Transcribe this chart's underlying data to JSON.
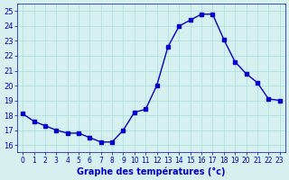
{
  "hours": [
    0,
    1,
    2,
    3,
    4,
    5,
    6,
    7,
    8,
    9,
    10,
    11,
    12,
    13,
    14,
    15,
    16,
    17,
    18,
    19,
    20,
    21,
    22,
    23
  ],
  "temps": [
    18.1,
    17.6,
    17.3,
    17.0,
    16.8,
    16.8,
    16.5,
    16.2,
    16.2,
    17.0,
    18.2,
    18.4,
    20.0,
    22.6,
    24.0,
    24.4,
    24.8,
    24.8,
    23.1,
    21.6,
    20.8,
    20.2,
    19.1,
    19.0
  ],
  "line_color": "#0000cc",
  "marker": "s",
  "marker_size": 3,
  "bg_color": "#d6f0f0",
  "grid_color": "#aadddd",
  "xlabel": "Graphe des températures (°c)",
  "xlabel_color": "#0000cc",
  "tick_color": "#0000cc",
  "ylim": [
    15.5,
    25.5
  ],
  "xlim": [
    -0.5,
    23.5
  ],
  "yticks": [
    16,
    17,
    18,
    19,
    20,
    21,
    22,
    23,
    24,
    25
  ],
  "xticks": [
    0,
    1,
    2,
    3,
    4,
    5,
    6,
    7,
    8,
    9,
    10,
    11,
    12,
    13,
    14,
    15,
    16,
    17,
    18,
    19,
    20,
    21,
    22,
    23
  ]
}
